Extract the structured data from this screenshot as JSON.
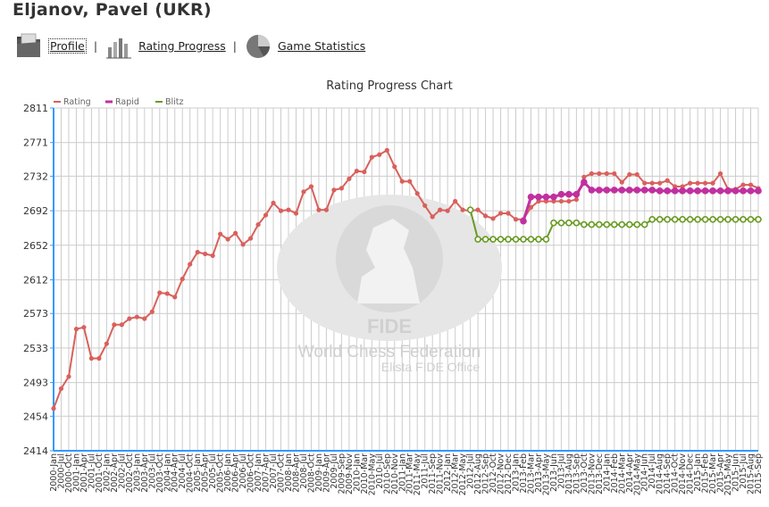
{
  "player": {
    "name": "Eljanov, Pavel (UKR)"
  },
  "nav": {
    "items": [
      {
        "label": "Profile",
        "icon": "folder-icon"
      },
      {
        "label": "Rating Progress",
        "icon": "bar-chart-icon"
      },
      {
        "label": "Game Statistics",
        "icon": "pie-chart-icon"
      }
    ],
    "separator": "|"
  },
  "watermark": {
    "logo_text": "FIDE",
    "line1": "World Chess Federation",
    "line2": "Elista FIDE Office"
  },
  "colors": {
    "rating": "#d9605c",
    "rapid": "#c030a0",
    "blitz": "#6a9a22",
    "axis": "#3399ff",
    "grid": "#cccccc"
  },
  "chart_data": {
    "type": "line",
    "title": "Rating Progress Chart",
    "xlabel": "",
    "ylabel": "",
    "ylim": [
      2414,
      2811
    ],
    "yticks": [
      2811,
      2771,
      2732,
      2692,
      2652,
      2612,
      2573,
      2533,
      2493,
      2454,
      2414
    ],
    "grid": true,
    "legend": "top-left",
    "categories": [
      "2000-Jan",
      "2000-Jul",
      "2000-Oct",
      "2001-Jan",
      "2001-Apr",
      "2001-Jul",
      "2001-Oct",
      "2002-Jan",
      "2002-Apr",
      "2002-Jul",
      "2002-Oct",
      "2003-Jan",
      "2003-Apr",
      "2003-Jul",
      "2003-Oct",
      "2004-Jan",
      "2004-Apr",
      "2004-Jul",
      "2004-Oct",
      "2005-Jan",
      "2005-Apr",
      "2005-Jul",
      "2005-Oct",
      "2006-Jan",
      "2006-Apr",
      "2006-Jul",
      "2006-Oct",
      "2007-Jan",
      "2007-Apr",
      "2007-Jul",
      "2007-Oct",
      "2008-Jan",
      "2008-Apr",
      "2008-Jul",
      "2008-Oct",
      "2009-Jan",
      "2009-Apr",
      "2009-Jul",
      "2009-Sep",
      "2009-Nov",
      "2010-Jan",
      "2010-Mar",
      "2010-May",
      "2010-Jul",
      "2010-Sep",
      "2010-Nov",
      "2011-Jan",
      "2011-Mar",
      "2011-May",
      "2011-Jul",
      "2011-Sep",
      "2011-Nov",
      "2012-Jan",
      "2012-Mar",
      "2012-May",
      "2012-Jul",
      "2012-Aug",
      "2012-Sep",
      "2012-Oct",
      "2012-Nov",
      "2012-Dec",
      "2013-Jan",
      "2013-Feb",
      "2013-Mar",
      "2013-Apr",
      "2013-May",
      "2013-Jun",
      "2013-Jul",
      "2013-Aug",
      "2013-Sep",
      "2013-Oct",
      "2013-Nov",
      "2013-Dec",
      "2014-Jan",
      "2014-Feb",
      "2014-Mar",
      "2014-Apr",
      "2014-May",
      "2014-Jun",
      "2014-Jul",
      "2014-Aug",
      "2014-Sep",
      "2014-Oct",
      "2014-Nov",
      "2014-Dec",
      "2015-Jan",
      "2015-Feb",
      "2015-Mar",
      "2015-Apr",
      "2015-May",
      "2015-Jun",
      "2015-Jul",
      "2015-Aug",
      "2015-Sep"
    ],
    "series": [
      {
        "name": "Rating",
        "values": [
          2463,
          2486,
          2500,
          2555,
          2557,
          2521,
          2521,
          2538,
          2560,
          2560,
          2567,
          2569,
          2567,
          2575,
          2597,
          2596,
          2592,
          2613,
          2630,
          2644,
          2642,
          2640,
          2665,
          2659,
          2666,
          2653,
          2660,
          2676,
          2687,
          2701,
          2692,
          2693,
          2689,
          2714,
          2720,
          2693,
          2693,
          2716,
          2718,
          2729,
          2738,
          2737,
          2754,
          2757,
          2762,
          2743,
          2726,
          2726,
          2712,
          2698,
          2685,
          2693,
          2692,
          2703,
          2693,
          2692,
          2693,
          2686,
          2683,
          2689,
          2689,
          2682,
          2682,
          2696,
          2703,
          2703,
          2703,
          2703,
          2703,
          2705,
          2731,
          2735,
          2735,
          2735,
          2735,
          2725,
          2734,
          2734,
          2724,
          2724,
          2724,
          2727,
          2720,
          2720,
          2724,
          2724,
          2724,
          2724,
          2735,
          2717,
          2717,
          2722,
          2722,
          2718
        ]
      },
      {
        "name": "Rapid",
        "values": [
          null,
          null,
          null,
          null,
          null,
          null,
          null,
          null,
          null,
          null,
          null,
          null,
          null,
          null,
          null,
          null,
          null,
          null,
          null,
          null,
          null,
          null,
          null,
          null,
          null,
          null,
          null,
          null,
          null,
          null,
          null,
          null,
          null,
          null,
          null,
          null,
          null,
          null,
          null,
          null,
          null,
          null,
          null,
          null,
          null,
          null,
          null,
          null,
          null,
          null,
          null,
          null,
          null,
          null,
          null,
          null,
          null,
          null,
          null,
          null,
          null,
          null,
          2680,
          2708,
          2708,
          2708,
          2708,
          2711,
          2711,
          2711,
          2725,
          2716,
          2716,
          2716,
          2716,
          2716,
          2716,
          2716,
          2716,
          2716,
          2715,
          2715,
          2715,
          2715,
          2715,
          2715,
          2715,
          2715,
          2715,
          2715,
          2715,
          2715,
          2715,
          2715
        ]
      },
      {
        "name": "Blitz",
        "values": [
          null,
          null,
          null,
          null,
          null,
          null,
          null,
          null,
          null,
          null,
          null,
          null,
          null,
          null,
          null,
          null,
          null,
          null,
          null,
          null,
          null,
          null,
          null,
          null,
          null,
          null,
          null,
          null,
          null,
          null,
          null,
          null,
          null,
          null,
          null,
          null,
          null,
          null,
          null,
          null,
          null,
          null,
          null,
          null,
          null,
          null,
          null,
          null,
          null,
          null,
          null,
          null,
          null,
          null,
          null,
          2693,
          2659,
          2659,
          2659,
          2659,
          2659,
          2659,
          2659,
          2659,
          2659,
          2659,
          2678,
          2678,
          2678,
          2678,
          2676,
          2676,
          2676,
          2676,
          2676,
          2676,
          2676,
          2676,
          2676,
          2682,
          2682,
          2682,
          2682,
          2682,
          2682,
          2682,
          2682,
          2682,
          2682,
          2682,
          2682,
          2682,
          2682,
          2682
        ]
      }
    ]
  }
}
